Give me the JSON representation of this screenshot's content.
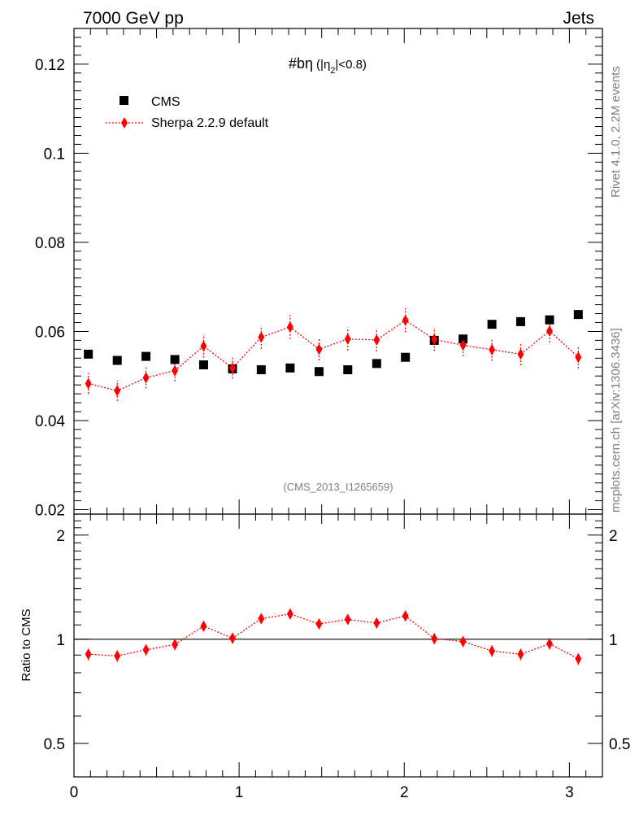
{
  "header": {
    "left": "7000 GeV pp",
    "right": "Jets"
  },
  "side_labels": {
    "rivet": "Rivet 4.1.0,  2.2M events",
    "mcplots": "mcplots.cern.ch [arXiv:1306.3436]"
  },
  "chart_data": {
    "type": "scatter",
    "title_prefix": "#bη",
    "title_open": "(|η",
    "title_sub": "2",
    "title_close": "|<0.8)",
    "watermark": "(CMS_2013_I1265659)",
    "xlim": [
      0,
      3.2
    ],
    "main": {
      "ylim": [
        0.019,
        0.128
      ],
      "yticks": [
        0.02,
        0.04,
        0.06,
        0.08,
        0.1,
        0.12
      ],
      "ytick_labels": [
        "0.02",
        "0.04",
        "0.06",
        "0.08",
        "0.1",
        "0.12"
      ]
    },
    "ratio": {
      "ylabel": "Ratio to CMS",
      "ylim": [
        0.4,
        2.3
      ],
      "yticks": [
        0.5,
        1,
        2
      ],
      "ytick_labels": [
        "0.5",
        "1",
        "2"
      ]
    },
    "xticks": [
      0,
      1,
      2,
      3
    ],
    "xtick_labels": [
      "0",
      "1",
      "2",
      "3"
    ],
    "x": [
      0.087,
      0.262,
      0.436,
      0.611,
      0.785,
      0.96,
      1.134,
      1.309,
      1.484,
      1.658,
      1.833,
      2.007,
      2.182,
      2.356,
      2.531,
      2.705,
      2.88,
      3.054
    ],
    "series": [
      {
        "name": "CMS",
        "color": "#000000",
        "marker": "square",
        "values": [
          0.0549,
          0.0535,
          0.0544,
          0.0537,
          0.0525,
          0.0516,
          0.0514,
          0.0518,
          0.051,
          0.0514,
          0.0528,
          0.0542,
          0.058,
          0.0583,
          0.0616,
          0.0622,
          0.0626,
          0.0638
        ]
      },
      {
        "name": "Sherpa 2.2.9 default",
        "color": "#ff0000",
        "marker": "diamond",
        "values": [
          0.0483,
          0.0467,
          0.0496,
          0.0512,
          0.0567,
          0.0518,
          0.0587,
          0.061,
          0.056,
          0.0583,
          0.0581,
          0.0625,
          0.0582,
          0.0569,
          0.0559,
          0.0549,
          0.0601,
          0.0542
        ],
        "errors": [
          0.0023,
          0.0023,
          0.0024,
          0.0024,
          0.0026,
          0.0024,
          0.0026,
          0.0027,
          0.0025,
          0.0026,
          0.0026,
          0.0027,
          0.0026,
          0.0025,
          0.0025,
          0.0025,
          0.0026,
          0.0025
        ],
        "ratio": [
          0.905,
          0.895,
          0.932,
          0.966,
          1.091,
          1.007,
          1.147,
          1.183,
          1.107,
          1.141,
          1.114,
          1.168,
          1.004,
          0.985,
          0.925,
          0.905,
          0.97,
          0.878
        ],
        "ratio_errors": [
          0.035,
          0.035,
          0.036,
          0.036,
          0.038,
          0.036,
          0.038,
          0.039,
          0.037,
          0.038,
          0.038,
          0.039,
          0.037,
          0.036,
          0.035,
          0.035,
          0.036,
          0.035
        ]
      }
    ]
  }
}
